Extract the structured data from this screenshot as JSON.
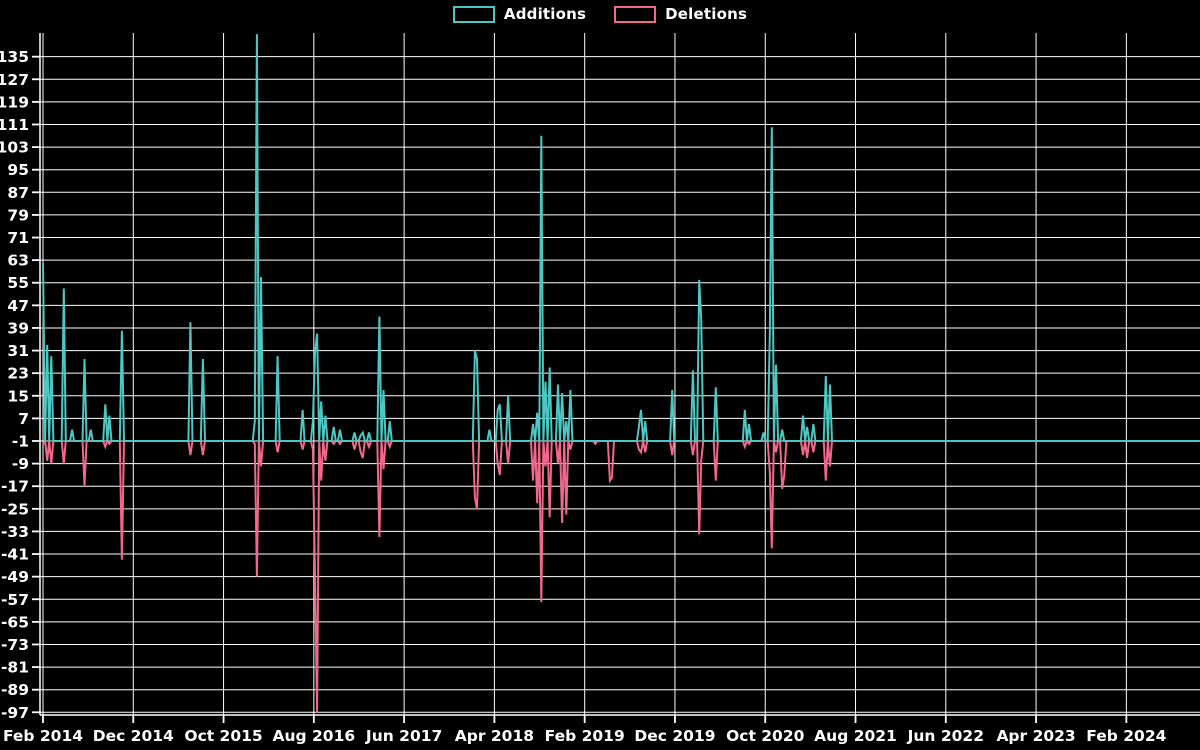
{
  "legend": {
    "additions_label": "Additions",
    "deletions_label": "Deletions"
  },
  "colors": {
    "additions": "#4DC7C3",
    "deletions": "#F2688C",
    "background": "#000000",
    "grid": "#FFFFFF",
    "text": "#FFFFFF"
  },
  "chart_data": {
    "type": "line",
    "title": "",
    "grid": true,
    "legend_position": "top-center",
    "x_axis": {
      "tick_labels": [
        "Feb 2014",
        "Dec 2014",
        "Oct 2015",
        "Aug 2016",
        "Jun 2017",
        "Apr 2018",
        "Feb 2019",
        "Dec 2019",
        "Oct 2020",
        "Aug 2021",
        "Jun 2022",
        "Apr 2023",
        "Feb 2024"
      ],
      "tick_interval_months": 10,
      "x_unit": "months since Feb 2014, weekly resolution"
    },
    "y_axis": {
      "tick_labels": [
        135,
        127,
        119,
        111,
        103,
        95,
        87,
        79,
        71,
        63,
        55,
        47,
        39,
        31,
        23,
        15,
        7,
        -1,
        -9,
        -17,
        -25,
        -33,
        -41,
        -49,
        -57,
        -65,
        -73,
        -81,
        -89,
        -97
      ],
      "min": -98,
      "max": 143.5,
      "baseline_value": -1,
      "note": "series rest at the -1 gridline between bursts; tallest addition spike is clipped at the top of the plot"
    },
    "series": [
      {
        "name": "Additions",
        "color": "#4DC7C3",
        "baseline": -1,
        "points": [
          [
            0,
            62
          ],
          [
            0.45,
            33
          ],
          [
            1,
            29
          ],
          [
            2.4,
            53
          ],
          [
            3.3,
            3
          ],
          [
            4.65,
            28
          ],
          [
            5.4,
            3
          ],
          [
            6.9,
            12
          ],
          [
            7.4,
            8
          ],
          [
            8.65,
            38
          ],
          [
            16.3,
            41
          ],
          [
            17.8,
            28
          ],
          [
            23.5,
            6
          ],
          [
            23.8,
            143
          ],
          [
            24.15,
            57
          ],
          [
            26,
            29
          ],
          [
            28.8,
            10
          ],
          [
            29.8,
            6
          ],
          [
            30.2,
            30
          ],
          [
            30.45,
            37
          ],
          [
            30.9,
            13
          ],
          [
            31.2,
            8
          ],
          [
            32.3,
            4
          ],
          [
            33,
            3
          ],
          [
            34.5,
            2
          ],
          [
            35.1,
            1
          ],
          [
            35.4,
            2
          ],
          [
            36,
            2
          ],
          [
            37.3,
            43
          ],
          [
            37.65,
            17
          ],
          [
            38.3,
            6
          ],
          [
            47.8,
            31
          ],
          [
            48.1,
            28
          ],
          [
            49.5,
            3
          ],
          [
            50.3,
            10
          ],
          [
            50.6,
            12
          ],
          [
            51.5,
            15
          ],
          [
            54.3,
            5
          ],
          [
            54.7,
            9
          ],
          [
            55.25,
            107
          ],
          [
            55.6,
            20
          ],
          [
            56.1,
            25
          ],
          [
            57,
            19
          ],
          [
            57.5,
            16
          ],
          [
            58,
            6
          ],
          [
            58.5,
            17
          ],
          [
            65.9,
            4
          ],
          [
            66.2,
            10
          ],
          [
            66.6,
            6
          ],
          [
            69.8,
            17
          ],
          [
            72.1,
            24
          ],
          [
            72.6,
            56
          ],
          [
            73,
            42
          ],
          [
            74.5,
            18
          ],
          [
            77.7,
            10
          ],
          [
            78.1,
            5
          ],
          [
            79.9,
            2
          ],
          [
            80.5,
            36
          ],
          [
            80.8,
            110
          ],
          [
            81.2,
            26
          ],
          [
            81.8,
            3
          ],
          [
            84.2,
            8
          ],
          [
            84.7,
            4
          ],
          [
            85.3,
            5
          ],
          [
            86.8,
            22
          ],
          [
            87.1,
            19
          ]
        ]
      },
      {
        "name": "Deletions",
        "color": "#F2688C",
        "baseline": -1,
        "points": [
          [
            0,
            -2
          ],
          [
            0.45,
            -8
          ],
          [
            1,
            -9
          ],
          [
            2.4,
            -9
          ],
          [
            4.65,
            -17
          ],
          [
            5.4,
            -1
          ],
          [
            6.9,
            -3
          ],
          [
            7.4,
            -2
          ],
          [
            8.65,
            -43
          ],
          [
            16.3,
            -6
          ],
          [
            17.8,
            -6
          ],
          [
            23.5,
            -2
          ],
          [
            23.8,
            -49
          ],
          [
            24.15,
            -10
          ],
          [
            26,
            -5
          ],
          [
            28.8,
            -4
          ],
          [
            29.8,
            -4
          ],
          [
            30.2,
            -49
          ],
          [
            30.45,
            -97
          ],
          [
            30.9,
            -15
          ],
          [
            31.2,
            -8
          ],
          [
            32.3,
            -2
          ],
          [
            33,
            -2
          ],
          [
            34.5,
            -4
          ],
          [
            35.1,
            -5
          ],
          [
            35.4,
            -7
          ],
          [
            36,
            -3
          ],
          [
            37.3,
            -35
          ],
          [
            37.65,
            -11
          ],
          [
            38.3,
            -3
          ],
          [
            47.8,
            -21
          ],
          [
            48.1,
            -25
          ],
          [
            49.5,
            -1
          ],
          [
            50.3,
            -9
          ],
          [
            50.6,
            -13
          ],
          [
            51.5,
            -9
          ],
          [
            54.3,
            -15
          ],
          [
            54.7,
            -23
          ],
          [
            55.25,
            -58
          ],
          [
            55.6,
            -10
          ],
          [
            56.1,
            -28
          ],
          [
            57,
            -9
          ],
          [
            57.5,
            -30
          ],
          [
            58,
            -27
          ],
          [
            58.5,
            -4
          ],
          [
            61.1,
            -2
          ],
          [
            62.8,
            -15
          ],
          [
            63.1,
            -14
          ],
          [
            65.9,
            -4
          ],
          [
            66.2,
            -5
          ],
          [
            66.6,
            -5
          ],
          [
            69.8,
            -6
          ],
          [
            72.1,
            -6
          ],
          [
            72.6,
            -34
          ],
          [
            73,
            -8
          ],
          [
            74.5,
            -15
          ],
          [
            77.7,
            -3
          ],
          [
            78.1,
            -2
          ],
          [
            79.9,
            -1
          ],
          [
            80.5,
            -12
          ],
          [
            80.8,
            -39
          ],
          [
            81.2,
            -5
          ],
          [
            81.8,
            -18
          ],
          [
            82.2,
            -13
          ],
          [
            84.2,
            -6
          ],
          [
            84.7,
            -7
          ],
          [
            85.3,
            -5
          ],
          [
            86.8,
            -15
          ],
          [
            87.1,
            -10
          ]
        ]
      }
    ]
  }
}
